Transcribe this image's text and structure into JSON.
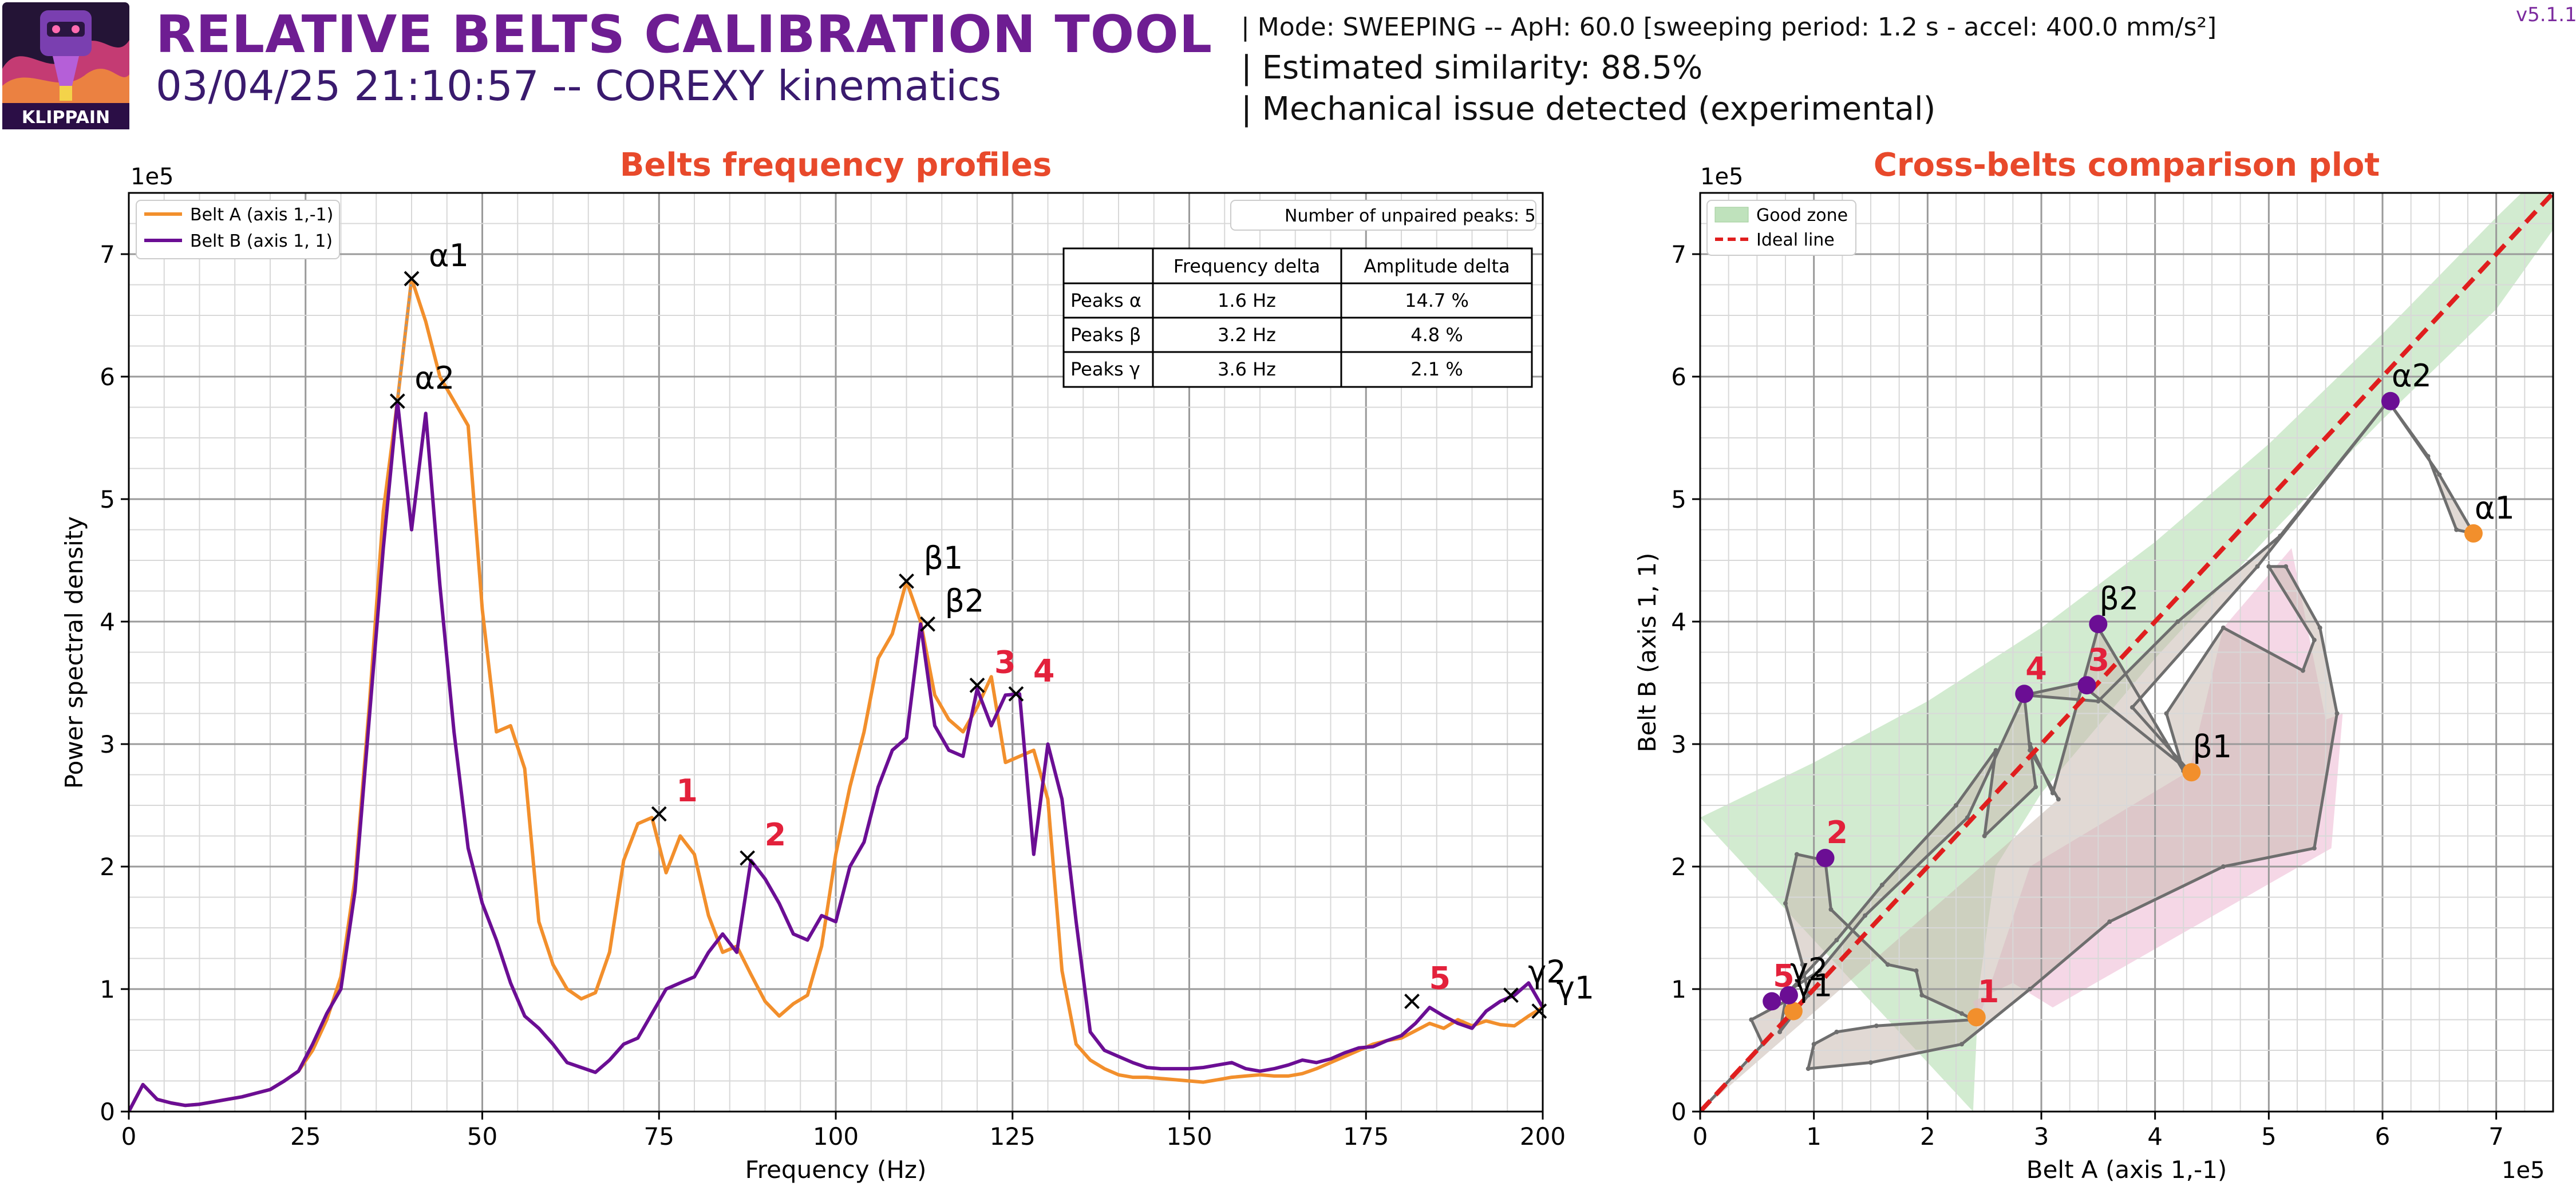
{
  "header": {
    "logo_text": "KLIPPAIN",
    "title": "RELATIVE BELTS CALIBRATION TOOL",
    "subtitle": "03/04/25 21:10:57 -- COREXY kinematics",
    "info_mode": "| Mode: SWEEPING -- ApH: 60.0 [sweeping period: 1.2 s - accel: 400.0 mm/s²]",
    "info_similarity": "| Estimated similarity: 88.5%",
    "info_mechanical": "| Mechanical issue detected (experimental)",
    "version": "v5.1.1"
  },
  "colors": {
    "belt_a": "#f28f2c",
    "belt_b": "#6b0e94",
    "title_red": "#e8492b",
    "peak_label": "#e3213b",
    "good_zone": "#bfe2bc",
    "bad_zone": "#f3cde0",
    "ideal_line": "#e01e1e",
    "path_gray": "#6e6e6e",
    "header_purple": "#6e1d92"
  },
  "chart_data": [
    {
      "type": "line",
      "title": "Belts frequency profiles",
      "xlabel": "Frequency (Hz)",
      "ylabel": "Power spectral density",
      "y_multiplier_label": "1e5",
      "xlim": [
        0,
        200
      ],
      "ylim": [
        0,
        7.5
      ],
      "xticks": [
        0,
        25,
        50,
        75,
        100,
        125,
        150,
        175,
        200
      ],
      "yticks": [
        0,
        1,
        2,
        3,
        4,
        5,
        6,
        7
      ],
      "grid": true,
      "legend_position": "top-left",
      "series": [
        {
          "name": "Belt A (axis 1,-1)",
          "color": "#f28f2c",
          "x": [
            0,
            2,
            4,
            6,
            8,
            10,
            12,
            14,
            16,
            18,
            20,
            22,
            24,
            26,
            28,
            30,
            32,
            34,
            36,
            38,
            40,
            42,
            44,
            46,
            48,
            50,
            52,
            54,
            56,
            58,
            60,
            62,
            64,
            66,
            68,
            70,
            72,
            74,
            76,
            78,
            80,
            82,
            84,
            86,
            88,
            90,
            92,
            94,
            96,
            98,
            100,
            102,
            104,
            106,
            108,
            110,
            112,
            114,
            116,
            118,
            120,
            122,
            124,
            126,
            128,
            130,
            132,
            134,
            136,
            138,
            140,
            142,
            144,
            146,
            148,
            150,
            152,
            154,
            156,
            158,
            160,
            162,
            164,
            166,
            168,
            170,
            172,
            174,
            176,
            178,
            180,
            182,
            184,
            186,
            188,
            190,
            192,
            194,
            196,
            198,
            200
          ],
          "y": [
            0,
            0.22,
            0.1,
            0.07,
            0.05,
            0.06,
            0.08,
            0.1,
            0.12,
            0.15,
            0.18,
            0.25,
            0.33,
            0.5,
            0.75,
            1.1,
            1.9,
            3.3,
            4.9,
            5.8,
            6.8,
            6.45,
            6.0,
            5.8,
            5.6,
            4.1,
            3.1,
            3.15,
            2.8,
            1.55,
            1.2,
            1.0,
            0.92,
            0.97,
            1.3,
            2.05,
            2.35,
            2.4,
            1.95,
            2.25,
            2.1,
            1.6,
            1.3,
            1.35,
            1.12,
            0.9,
            0.78,
            0.88,
            0.95,
            1.35,
            2.1,
            2.65,
            3.1,
            3.7,
            3.9,
            4.33,
            4.0,
            3.4,
            3.2,
            3.1,
            3.3,
            3.55,
            2.85,
            2.9,
            2.95,
            2.55,
            1.15,
            0.55,
            0.42,
            0.35,
            0.3,
            0.28,
            0.28,
            0.27,
            0.26,
            0.25,
            0.24,
            0.26,
            0.28,
            0.29,
            0.3,
            0.29,
            0.29,
            0.31,
            0.35,
            0.4,
            0.45,
            0.5,
            0.55,
            0.58,
            0.6,
            0.66,
            0.72,
            0.68,
            0.75,
            0.7,
            0.74,
            0.71,
            0.7,
            0.78,
            0.85
          ]
        },
        {
          "name": "Belt B (axis 1, 1)",
          "color": "#6b0e94",
          "x": [
            0,
            2,
            4,
            6,
            8,
            10,
            12,
            14,
            16,
            18,
            20,
            22,
            24,
            26,
            28,
            30,
            32,
            34,
            36,
            38,
            40,
            42,
            44,
            46,
            48,
            50,
            52,
            54,
            56,
            58,
            60,
            62,
            64,
            66,
            68,
            70,
            72,
            74,
            76,
            78,
            80,
            82,
            84,
            86,
            88,
            90,
            92,
            94,
            96,
            98,
            100,
            102,
            104,
            106,
            108,
            110,
            112,
            114,
            116,
            118,
            120,
            122,
            124,
            126,
            128,
            130,
            132,
            134,
            136,
            138,
            140,
            142,
            144,
            146,
            148,
            150,
            152,
            154,
            156,
            158,
            160,
            162,
            164,
            166,
            168,
            170,
            172,
            174,
            176,
            178,
            180,
            182,
            184,
            186,
            188,
            190,
            192,
            194,
            196,
            198,
            200
          ],
          "y": [
            0,
            0.22,
            0.1,
            0.07,
            0.05,
            0.06,
            0.08,
            0.1,
            0.12,
            0.15,
            0.18,
            0.25,
            0.33,
            0.55,
            0.8,
            1.0,
            1.8,
            3.2,
            4.6,
            5.8,
            4.75,
            5.7,
            4.3,
            3.1,
            2.15,
            1.7,
            1.4,
            1.05,
            0.78,
            0.68,
            0.55,
            0.4,
            0.36,
            0.32,
            0.42,
            0.55,
            0.6,
            0.8,
            1.0,
            1.05,
            1.1,
            1.3,
            1.45,
            1.3,
            2.05,
            1.9,
            1.7,
            1.45,
            1.4,
            1.6,
            1.55,
            2.0,
            2.2,
            2.65,
            2.95,
            3.05,
            3.98,
            3.15,
            2.95,
            2.9,
            3.45,
            3.15,
            3.4,
            3.41,
            2.1,
            3.0,
            2.55,
            1.55,
            0.65,
            0.5,
            0.45,
            0.4,
            0.36,
            0.35,
            0.35,
            0.35,
            0.36,
            0.38,
            0.4,
            0.35,
            0.33,
            0.35,
            0.38,
            0.42,
            0.4,
            0.43,
            0.48,
            0.52,
            0.53,
            0.58,
            0.62,
            0.72,
            0.85,
            0.78,
            0.72,
            0.68,
            0.82,
            0.9,
            0.95,
            1.05,
            0.85
          ]
        }
      ],
      "peak_markers": [
        {
          "label": "α1",
          "x": 40,
          "y": 6.8,
          "color": "#000000"
        },
        {
          "label": "α2",
          "x": 38,
          "y": 5.8,
          "color": "#000000"
        },
        {
          "label": "β1",
          "x": 110,
          "y": 4.33,
          "color": "#000000"
        },
        {
          "label": "β2",
          "x": 113,
          "y": 3.98,
          "color": "#000000"
        },
        {
          "label": "γ1",
          "x": 199.5,
          "y": 0.82,
          "color": "#000000"
        },
        {
          "label": "γ2",
          "x": 195.5,
          "y": 0.95,
          "color": "#000000"
        },
        {
          "label": "1",
          "x": 75,
          "y": 2.43,
          "color": "#e3213b"
        },
        {
          "label": "2",
          "x": 87.5,
          "y": 2.07,
          "color": "#e3213b"
        },
        {
          "label": "3",
          "x": 120,
          "y": 3.48,
          "color": "#e3213b"
        },
        {
          "label": "4",
          "x": 125.5,
          "y": 3.41,
          "color": "#e3213b"
        },
        {
          "label": "5",
          "x": 181.5,
          "y": 0.9,
          "color": "#e3213b"
        }
      ],
      "unpaired_text": "Number of unpaired peaks: 5",
      "delta_table": {
        "headers": [
          "",
          "Frequency delta",
          "Amplitude delta"
        ],
        "rows": [
          [
            "Peaks α",
            "1.6 Hz",
            "14.7 %"
          ],
          [
            "Peaks β",
            "3.2 Hz",
            "4.8 %"
          ],
          [
            "Peaks γ",
            "3.6 Hz",
            "2.1 %"
          ]
        ]
      }
    },
    {
      "type": "scatter",
      "title": "Cross-belts comparison plot",
      "xlabel": "Belt A (axis 1,-1)",
      "ylabel": "Belt B (axis 1, 1)",
      "x_multiplier_label": "1e5",
      "y_multiplier_label": "1e5",
      "xlim": [
        0,
        7.5
      ],
      "ylim": [
        0,
        7.5
      ],
      "xticks": [
        0,
        1,
        2,
        3,
        4,
        5,
        6,
        7
      ],
      "yticks": [
        0,
        1,
        2,
        3,
        4,
        5,
        6,
        7
      ],
      "grid": true,
      "legend_position": "top-left",
      "legend": [
        "Good zone",
        "Ideal line"
      ],
      "ideal_line": {
        "x": [
          0,
          7.5
        ],
        "y": [
          0,
          7.5
        ]
      },
      "good_zone": {
        "upper": [
          [
            0,
            2.4
          ],
          [
            1,
            2.85
          ],
          [
            2,
            3.35
          ],
          [
            3,
            3.95
          ],
          [
            4,
            4.65
          ],
          [
            5,
            5.45
          ],
          [
            6,
            6.35
          ],
          [
            7,
            7.3
          ],
          [
            7.5,
            7.75
          ]
        ],
        "lower": [
          [
            7.5,
            7.2
          ],
          [
            7,
            6.55
          ],
          [
            6,
            5.65
          ],
          [
            5,
            4.7
          ],
          [
            4,
            3.7
          ],
          [
            3,
            2.6
          ],
          [
            2.6,
            2.0
          ],
          [
            2.45,
            1.0
          ],
          [
            2.4,
            0
          ]
        ]
      },
      "bad_zone": [
        [
          4.6,
          3.95
        ],
        [
          5.2,
          4.6
        ],
        [
          5.5,
          3.2
        ],
        [
          5.65,
          3.25
        ],
        [
          5.55,
          2.15
        ],
        [
          3.1,
          0.85
        ],
        [
          2.75,
          1.05
        ],
        [
          2.4,
          0.9
        ],
        [
          2.45,
          0.75
        ],
        [
          2.9,
          2.0
        ],
        [
          4.3,
          2.78
        ]
      ],
      "path": [
        [
          0,
          0
        ],
        [
          0.3,
          0.3
        ],
        [
          0.55,
          0.55
        ],
        [
          0.45,
          0.75
        ],
        [
          0.75,
          0.9
        ],
        [
          0.7,
          0.65
        ],
        [
          0.95,
          0.95
        ],
        [
          0.9,
          1.2
        ],
        [
          0.75,
          1.7
        ],
        [
          0.85,
          2.1
        ],
        [
          1.1,
          2.05
        ],
        [
          1.15,
          1.65
        ],
        [
          1.65,
          1.2
        ],
        [
          1.9,
          1.15
        ],
        [
          1.95,
          0.95
        ],
        [
          2.3,
          0.8
        ],
        [
          2.4,
          0.75
        ],
        [
          1.55,
          0.7
        ],
        [
          1.2,
          0.65
        ],
        [
          1.0,
          0.55
        ],
        [
          0.95,
          0.35
        ],
        [
          1.5,
          0.4
        ],
        [
          2.3,
          0.55
        ],
        [
          2.9,
          1.0
        ],
        [
          3.6,
          1.55
        ],
        [
          4.6,
          2.0
        ],
        [
          5.4,
          2.15
        ],
        [
          5.6,
          3.25
        ],
        [
          5.45,
          3.95
        ],
        [
          5.15,
          4.45
        ],
        [
          5.0,
          4.45
        ],
        [
          5.4,
          3.85
        ],
        [
          5.3,
          3.6
        ],
        [
          4.6,
          3.95
        ],
        [
          4.1,
          3.25
        ],
        [
          4.25,
          2.78
        ],
        [
          3.5,
          3.95
        ],
        [
          3.1,
          2.6
        ],
        [
          2.9,
          3.0
        ],
        [
          2.95,
          2.65
        ],
        [
          2.5,
          2.25
        ],
        [
          2.6,
          2.95
        ],
        [
          2.25,
          2.5
        ],
        [
          1.6,
          1.85
        ],
        [
          1.2,
          1.4
        ],
        [
          1.05,
          1.25
        ],
        [
          0.8,
          1.0
        ],
        [
          1.05,
          1.15
        ],
        [
          1.45,
          1.6
        ],
        [
          2.35,
          2.4
        ],
        [
          2.85,
          3.4
        ],
        [
          3.35,
          3.5
        ],
        [
          3.4,
          3.45
        ],
        [
          4.3,
          2.78
        ],
        [
          3.8,
          3.3
        ],
        [
          4.9,
          4.45
        ],
        [
          6.05,
          5.8
        ],
        [
          6.4,
          5.35
        ],
        [
          6.65,
          4.75
        ],
        [
          6.8,
          4.72
        ],
        [
          6.5,
          5.2
        ],
        [
          6.05,
          5.8
        ],
        [
          5.1,
          4.7
        ],
        [
          4.2,
          4.0
        ],
        [
          3.5,
          3.35
        ],
        [
          2.85,
          3.4
        ],
        [
          2.9,
          2.95
        ],
        [
          3.15,
          2.55
        ]
      ],
      "peak_points": [
        {
          "label": "α1",
          "x": 6.8,
          "y": 4.72,
          "belt": "A",
          "label_color": "#000000"
        },
        {
          "label": "α2",
          "x": 6.07,
          "y": 5.8,
          "belt": "B",
          "label_color": "#000000"
        },
        {
          "label": "β1",
          "x": 4.32,
          "y": 2.77,
          "belt": "A",
          "label_color": "#000000"
        },
        {
          "label": "β2",
          "x": 3.5,
          "y": 3.98,
          "belt": "B",
          "label_color": "#000000"
        },
        {
          "label": "γ1",
          "x": 0.82,
          "y": 0.82,
          "belt": "A",
          "label_color": "#000000"
        },
        {
          "label": "γ2",
          "x": 0.78,
          "y": 0.95,
          "belt": "B",
          "label_color": "#000000"
        },
        {
          "label": "1",
          "x": 2.43,
          "y": 0.77,
          "belt": "A",
          "label_color": "#e3213b"
        },
        {
          "label": "2",
          "x": 1.1,
          "y": 2.07,
          "belt": "B",
          "label_color": "#e3213b"
        },
        {
          "label": "3",
          "x": 3.4,
          "y": 3.48,
          "belt": "B",
          "label_color": "#e3213b"
        },
        {
          "label": "4",
          "x": 2.85,
          "y": 3.41,
          "belt": "B",
          "label_color": "#e3213b"
        },
        {
          "label": "5",
          "x": 0.63,
          "y": 0.9,
          "belt": "B",
          "label_color": "#e3213b"
        }
      ]
    }
  ]
}
